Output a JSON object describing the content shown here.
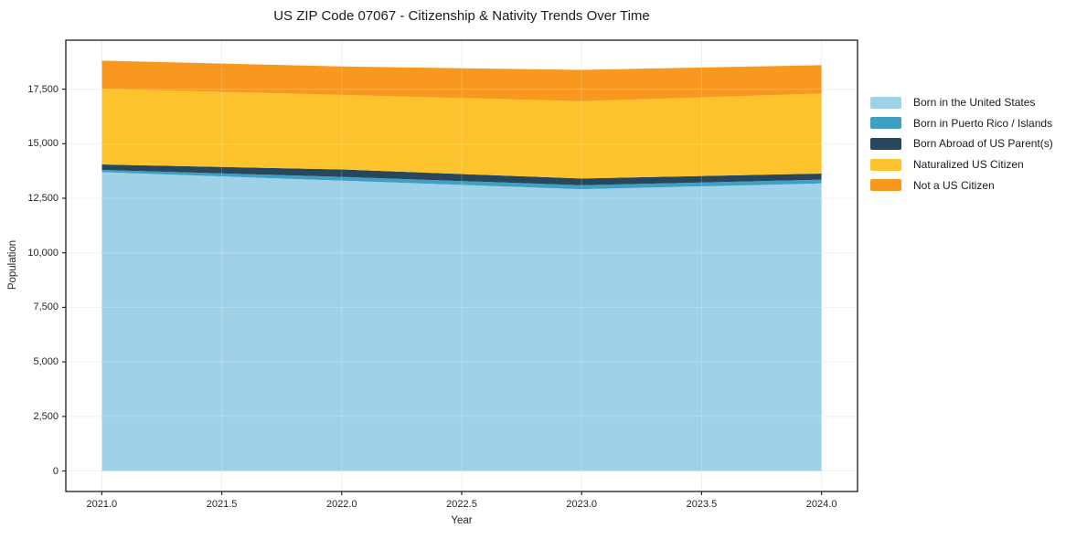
{
  "chart_data": {
    "type": "area",
    "stacked": true,
    "title": "US ZIP Code 07067 - Citizenship & Nativity Trends Over Time",
    "xlabel": "Year",
    "ylabel": "Population",
    "x": [
      2021,
      2022,
      2023,
      2024
    ],
    "series": [
      {
        "name": "Born in the United States",
        "color": "#9fd1e8",
        "values": [
          13700,
          13310,
          12915,
          13180
        ]
      },
      {
        "name": "Born in Puerto Rico / Islands",
        "color": "#3fa0c2",
        "values": [
          100,
          170,
          180,
          170
        ]
      },
      {
        "name": "Born Abroad of US Parent(s)",
        "color": "#27485c",
        "values": [
          250,
          340,
          310,
          280
        ]
      },
      {
        "name": "Naturalized US Citizen",
        "color": "#fdc32d",
        "values": [
          3465,
          3415,
          3545,
          3670
        ]
      },
      {
        "name": "Not a US Citizen",
        "color": "#f8981f",
        "values": [
          1290,
          1305,
          1435,
          1300
        ]
      }
    ],
    "totals": [
      18805,
      18540,
      18385,
      18600
    ],
    "xlim": [
      2020.85,
      2024.15
    ],
    "ylim": [
      -940,
      19745
    ],
    "xtick_values": [
      2021.0,
      2021.5,
      2022.0,
      2022.5,
      2023.0,
      2023.5,
      2024.0
    ],
    "xtick_labels": [
      "2021.0",
      "2021.5",
      "2022.0",
      "2022.5",
      "2023.0",
      "2023.5",
      "2024.0"
    ],
    "ytick_values": [
      0,
      2500,
      5000,
      7500,
      10000,
      12500,
      15000,
      17500
    ],
    "ytick_labels": [
      "0",
      "2,500",
      "5,000",
      "7,500",
      "10,000",
      "12,500",
      "15,000",
      "17,500"
    ],
    "grid": true,
    "legend_position": "right-outside",
    "colors": {
      "grid_under": "#ececec",
      "grid_over": "rgba(255,255,255,0.22)",
      "spine": "#1a1a1a",
      "tick": "#262626",
      "text": "#262626",
      "background": "#ffffff"
    }
  }
}
